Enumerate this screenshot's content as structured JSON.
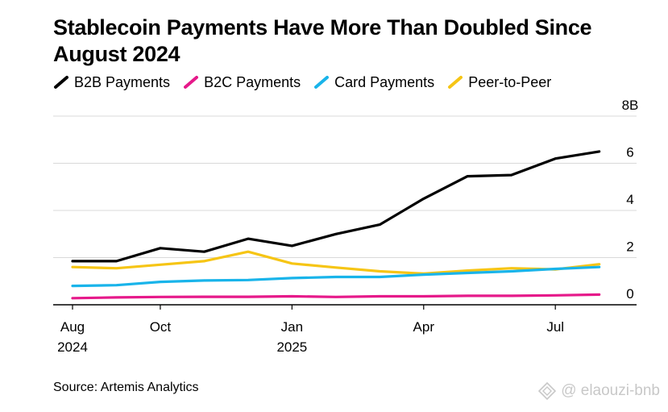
{
  "chart_data": {
    "type": "line",
    "title": "Stablecoin Payments Have More Than Doubled Since August 2024",
    "source": "Source: Artemis Analytics",
    "xlabel": "",
    "ylabel": "",
    "ylim": [
      0,
      8
    ],
    "y_ticks": [
      {
        "value": 0,
        "label": "0"
      },
      {
        "value": 2,
        "label": "2"
      },
      {
        "value": 4,
        "label": "4"
      },
      {
        "value": 6,
        "label": "6"
      },
      {
        "value": 8,
        "label": "8B"
      }
    ],
    "x_ticks": [
      {
        "index": 0,
        "label": "Aug",
        "sublabel": "2024"
      },
      {
        "index": 2,
        "label": "Oct",
        "sublabel": ""
      },
      {
        "index": 5,
        "label": "Jan",
        "sublabel": "2025"
      },
      {
        "index": 8,
        "label": "Apr",
        "sublabel": ""
      },
      {
        "index": 11,
        "label": "Jul",
        "sublabel": ""
      }
    ],
    "x_range": [
      0,
      12.3
    ],
    "x": [
      0,
      1,
      2,
      3,
      4,
      5,
      6,
      7,
      8,
      9,
      10,
      11,
      12
    ],
    "series": [
      {
        "name": "B2B Payments",
        "color": "#000000",
        "values": [
          1.85,
          1.85,
          2.4,
          2.25,
          2.8,
          2.5,
          3.0,
          3.4,
          4.5,
          5.45,
          5.5,
          6.2,
          6.5
        ]
      },
      {
        "name": "B2C Payments",
        "color": "#e6198a",
        "values": [
          0.28,
          0.31,
          0.33,
          0.34,
          0.34,
          0.36,
          0.33,
          0.36,
          0.36,
          0.38,
          0.38,
          0.4,
          0.43
        ]
      },
      {
        "name": "Card Payments",
        "color": "#19b4ea",
        "values": [
          0.8,
          0.83,
          0.97,
          1.03,
          1.05,
          1.13,
          1.18,
          1.18,
          1.28,
          1.35,
          1.42,
          1.52,
          1.6
        ]
      },
      {
        "name": "Peer-to-Peer",
        "color": "#f6c515",
        "values": [
          1.6,
          1.55,
          1.7,
          1.85,
          2.25,
          1.75,
          1.58,
          1.42,
          1.32,
          1.45,
          1.55,
          1.5,
          1.72
        ]
      }
    ]
  },
  "watermark": {
    "text": "@ elaouzi-bnb"
  }
}
